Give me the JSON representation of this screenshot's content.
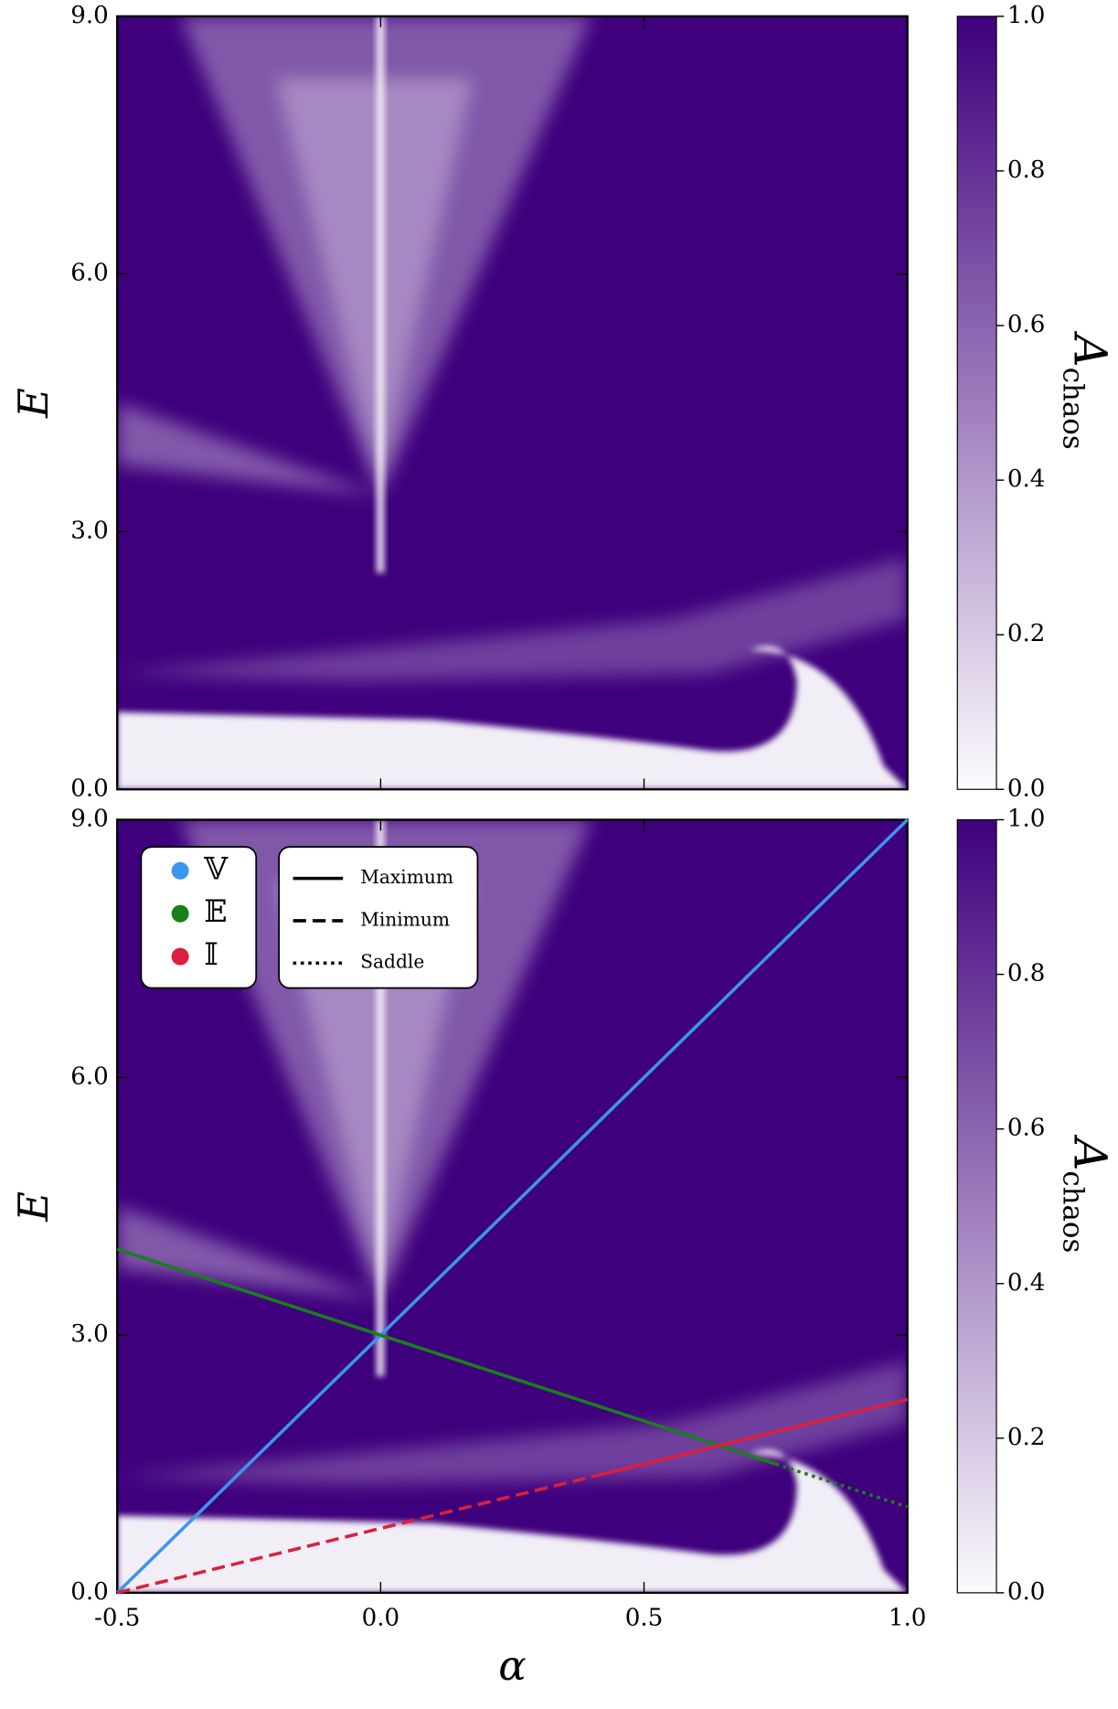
{
  "chart_data": [
    {
      "type": "heatmap",
      "ylabel": "E",
      "xlim": [
        -0.5,
        1.0
      ],
      "xticks": [
        -0.5,
        0,
        0.5,
        1
      ],
      "ylim": [
        0,
        9
      ],
      "yticks": [
        {
          "value": 0,
          "label": "0.0"
        },
        {
          "value": 3,
          "label": "3.0"
        },
        {
          "value": 6,
          "label": "6.0"
        },
        {
          "value": 9,
          "label": "9.0"
        }
      ],
      "colormap": [
        "#fcfbfd",
        "#3f007d"
      ],
      "colorbar": {
        "label": "A",
        "label_subscript": "chaos",
        "lim": [
          0,
          1
        ],
        "ticks": [
          {
            "value": 0,
            "label": "0.0"
          },
          {
            "value": 0.2,
            "label": "0.2"
          },
          {
            "value": 0.4,
            "label": "0.4"
          },
          {
            "value": 0.6,
            "label": "0.6"
          },
          {
            "value": 0.8,
            "label": "0.8"
          },
          {
            "value": 1,
            "label": "1.0"
          }
        ]
      }
    },
    {
      "type": "heatmap",
      "ylabel": "E",
      "xlabel": "α",
      "xlim": [
        -0.5,
        1.0
      ],
      "xticks": [
        {
          "value": -0.5,
          "label": "-0.5"
        },
        {
          "value": 0,
          "label": "0.0"
        },
        {
          "value": 0.5,
          "label": "0.5"
        },
        {
          "value": 1,
          "label": "1.0"
        }
      ],
      "ylim": [
        0,
        9
      ],
      "yticks": [
        {
          "value": 0,
          "label": "0.0"
        },
        {
          "value": 3,
          "label": "3.0"
        },
        {
          "value": 6,
          "label": "6.0"
        },
        {
          "value": 9,
          "label": "9.0"
        }
      ],
      "colormap": [
        "#fcfbfd",
        "#3f007d"
      ],
      "colorbar": {
        "label": "A",
        "label_subscript": "chaos",
        "lim": [
          0,
          1
        ],
        "ticks": [
          {
            "value": 0,
            "label": "0.0"
          },
          {
            "value": 0.2,
            "label": "0.2"
          },
          {
            "value": 0.4,
            "label": "0.4"
          },
          {
            "value": 0.6,
            "label": "0.6"
          },
          {
            "value": 0.8,
            "label": "0.8"
          },
          {
            "value": 1,
            "label": "1.0"
          }
        ]
      },
      "line_styles": [
        {
          "name": "Maximum",
          "dash": "solid"
        },
        {
          "name": "Minimum",
          "dash": "dashed"
        },
        {
          "name": "Saddle",
          "dash": "dotted"
        }
      ],
      "series": [
        {
          "name": "𝕍",
          "color": "#3a96ee",
          "segments": [
            {
              "style": "Maximum",
              "x": [
                -0.5,
                1.0
              ],
              "values": [
                0,
                9
              ]
            }
          ]
        },
        {
          "name": "𝔼",
          "color": "#17801a",
          "segments": [
            {
              "style": "Maximum",
              "x": [
                -0.5,
                0.75
              ],
              "values": [
                4,
                1.5
              ]
            },
            {
              "style": "Saddle",
              "x": [
                0.75,
                1.0
              ],
              "values": [
                1.5,
                1.0
              ]
            }
          ]
        },
        {
          "name": "𝕀",
          "color": "#dc1f3c",
          "segments": [
            {
              "style": "Minimum",
              "x": [
                -0.5,
                0.4
              ],
              "values": [
                0,
                1.35
              ]
            },
            {
              "style": "Maximum",
              "x": [
                0.4,
                1.0
              ],
              "values": [
                1.35,
                2.25
              ]
            }
          ]
        }
      ]
    }
  ]
}
